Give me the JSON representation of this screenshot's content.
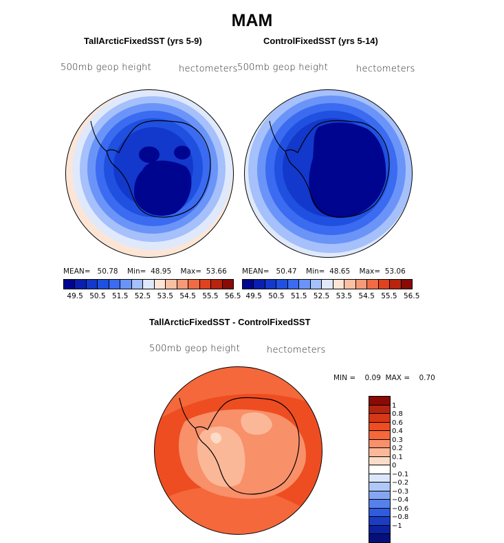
{
  "title": "MAM",
  "panels": [
    {
      "title": "TallArcticFixedSST (yrs 5-9)",
      "field_label": "500mb  geop  height",
      "units": "hectometers",
      "stats": {
        "mean_label": "MEAN=",
        "mean": "50.78",
        "min_label": "Min=",
        "min": "48.95",
        "max_label": "Max=",
        "max": "53.66"
      },
      "colorbar_labels": [
        "49.5",
        "50.5",
        "51.5",
        "52.5",
        "53.5",
        "54.5",
        "55.5",
        "56.5"
      ]
    },
    {
      "title": "ControlFixedSST (yrs 5-14)",
      "field_label": "500mb  geop  height",
      "units": "hectometers",
      "stats": {
        "mean_label": "MEAN=",
        "mean": "50.47",
        "min_label": "Min=",
        "min": "48.65",
        "max_label": "Max=",
        "max": "53.06"
      },
      "colorbar_labels": [
        "49.5",
        "50.5",
        "51.5",
        "52.5",
        "53.5",
        "54.5",
        "55.5",
        "56.5"
      ]
    }
  ],
  "diff": {
    "title": "TallArcticFixedSST - ControlFixedSST",
    "field_label": "500mb  geop  height",
    "units": "hectometers",
    "minmax": "MIN =    0.09  MAX =    0.70",
    "colorbar_labels": [
      "1",
      "0.8",
      "0.6",
      "0.4",
      "0.3",
      "0.2",
      "0.1",
      "0",
      "−0.1",
      "−0.2",
      "−0.3",
      "−0.4",
      "−0.6",
      "−0.8",
      "−1"
    ]
  },
  "colors": {
    "abs_scale": [
      "#00058f",
      "#0a1fb0",
      "#1338cc",
      "#1f50e0",
      "#3a6bf0",
      "#6a94f7",
      "#a5c0fa",
      "#dfe9fb",
      "#fde5d6",
      "#fac0a3",
      "#f59a78",
      "#ef6c45",
      "#e0421f",
      "#b8240e",
      "#8a0a05"
    ],
    "diff_scale": [
      "#8a0a05",
      "#b32410",
      "#d63716",
      "#ee4d21",
      "#f4683b",
      "#f8906a",
      "#fbb898",
      "#fcdcc8",
      "#ffffff",
      "#dbe6fb",
      "#b0c8f8",
      "#84a6f2",
      "#5680eb",
      "#2f5cde",
      "#1a3dc4",
      "#0c22a0",
      "#05107a"
    ]
  }
}
